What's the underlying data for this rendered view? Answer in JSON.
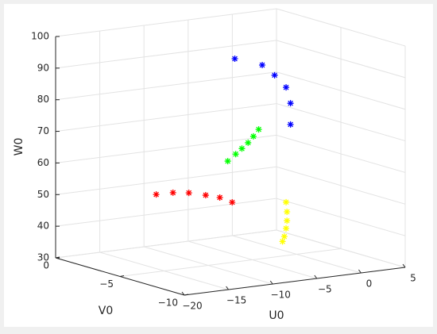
{
  "chart_data": {
    "type": "scatter3d",
    "x_label": "U0",
    "y_label": "V0",
    "z_label": "W0",
    "xlim": [
      -20,
      5
    ],
    "xticks": [
      {
        "value": -20,
        "label": "−20"
      },
      {
        "value": -15,
        "label": "−15"
      },
      {
        "value": -10,
        "label": "−10"
      },
      {
        "value": -5,
        "label": "−5"
      },
      0,
      5
    ],
    "ylim": [
      -10,
      0
    ],
    "yticks": [
      {
        "value": -10,
        "label": "−10"
      },
      {
        "value": -5,
        "label": "−5"
      },
      0
    ],
    "zlim": [
      30,
      100
    ],
    "zticks": [
      30,
      40,
      50,
      60,
      70,
      80,
      90,
      100
    ],
    "grid": true,
    "series": [
      {
        "color": "#ff0000",
        "x": [
          -15.9,
          -14.0,
          -12.2,
          -10.3,
          -8.7,
          -7.3
        ],
        "y": [
          -5,
          -5,
          -5,
          -5,
          -5,
          -5
        ],
        "z": [
          54.5,
          54.4,
          53.7,
          52.3,
          51.0,
          49.0
        ]
      },
      {
        "color": "#00ff00",
        "x": [
          -7.8,
          -6.9,
          -6.2,
          -5.5,
          -4.9,
          -4.3
        ],
        "y": [
          -5,
          -5,
          -5,
          -5,
          -5,
          -5
        ],
        "z": [
          62.2,
          64.1,
          65.6,
          67.2,
          69.0,
          71.0
        ]
      },
      {
        "color": "#0000ff",
        "x": [
          -7.0,
          -3.9,
          -2.5,
          -1.2,
          -0.7,
          -0.7
        ],
        "y": [
          -5,
          -5,
          -5,
          -5,
          -5,
          -5
        ],
        "z": [
          94.3,
          91.2,
          87.5,
          83.2,
          78.0,
          71.3
        ]
      },
      {
        "color": "#ffff00",
        "x": [
          -1.2,
          -1.1,
          -1.1,
          -1.2,
          -1.4,
          -1.6
        ],
        "y": [
          -5,
          -5,
          -5,
          -5,
          -5,
          -5
        ],
        "z": [
          46.9,
          43.8,
          41.0,
          38.6,
          36.1,
          34.6
        ]
      }
    ]
  }
}
